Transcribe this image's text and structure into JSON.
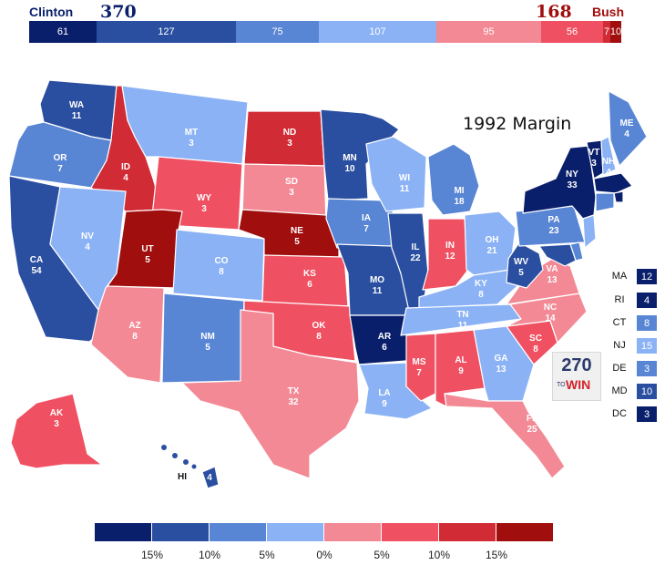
{
  "colors": {
    "d_safe": "#0a1f6b",
    "d_likely": "#2b4fa0",
    "d_lean": "#5885d4",
    "d_tilt": "#8bb2f5",
    "r_tilt": "#f28995",
    "r_lean": "#ef5062",
    "r_likely": "#d12b35",
    "r_safe": "#a00e0e"
  },
  "header": {
    "left_candidate": "Clinton",
    "left_total": "370",
    "right_total": "168",
    "right_candidate": "Bush",
    "segments": [
      {
        "value": "61",
        "cat": "d_safe"
      },
      {
        "value": "127",
        "cat": "d_likely"
      },
      {
        "value": "75",
        "cat": "d_lean"
      },
      {
        "value": "107",
        "cat": "d_tilt"
      },
      {
        "value": "95",
        "cat": "r_tilt"
      },
      {
        "value": "56",
        "cat": "r_lean"
      },
      {
        "value": "7",
        "cat": "r_likely"
      },
      {
        "value": "10",
        "cat": "r_safe"
      }
    ]
  },
  "map_title": "1992 Margin",
  "states": [
    {
      "abbr": "WA",
      "ev": "11",
      "cat": "d_likely"
    },
    {
      "abbr": "OR",
      "ev": "7",
      "cat": "d_lean"
    },
    {
      "abbr": "CA",
      "ev": "54",
      "cat": "d_likely"
    },
    {
      "abbr": "ID",
      "ev": "4",
      "cat": "r_likely"
    },
    {
      "abbr": "NV",
      "ev": "4",
      "cat": "d_tilt"
    },
    {
      "abbr": "MT",
      "ev": "3",
      "cat": "d_tilt"
    },
    {
      "abbr": "WY",
      "ev": "3",
      "cat": "r_lean"
    },
    {
      "abbr": "UT",
      "ev": "5",
      "cat": "r_safe"
    },
    {
      "abbr": "AZ",
      "ev": "8",
      "cat": "r_tilt"
    },
    {
      "abbr": "CO",
      "ev": "8",
      "cat": "d_tilt"
    },
    {
      "abbr": "NM",
      "ev": "5",
      "cat": "d_lean"
    },
    {
      "abbr": "ND",
      "ev": "3",
      "cat": "r_likely"
    },
    {
      "abbr": "SD",
      "ev": "3",
      "cat": "r_tilt"
    },
    {
      "abbr": "NE",
      "ev": "5",
      "cat": "r_safe"
    },
    {
      "abbr": "KS",
      "ev": "6",
      "cat": "r_lean"
    },
    {
      "abbr": "OK",
      "ev": "8",
      "cat": "r_lean"
    },
    {
      "abbr": "TX",
      "ev": "32",
      "cat": "r_tilt"
    },
    {
      "abbr": "MN",
      "ev": "10",
      "cat": "d_likely"
    },
    {
      "abbr": "IA",
      "ev": "7",
      "cat": "d_lean"
    },
    {
      "abbr": "MO",
      "ev": "11",
      "cat": "d_likely"
    },
    {
      "abbr": "AR",
      "ev": "6",
      "cat": "d_safe"
    },
    {
      "abbr": "LA",
      "ev": "9",
      "cat": "d_tilt"
    },
    {
      "abbr": "WI",
      "ev": "11",
      "cat": "d_tilt"
    },
    {
      "abbr": "IL",
      "ev": "22",
      "cat": "d_likely"
    },
    {
      "abbr": "MI",
      "ev": "18",
      "cat": "d_lean"
    },
    {
      "abbr": "IN",
      "ev": "12",
      "cat": "r_lean"
    },
    {
      "abbr": "OH",
      "ev": "21",
      "cat": "d_tilt"
    },
    {
      "abbr": "KY",
      "ev": "8",
      "cat": "d_tilt"
    },
    {
      "abbr": "TN",
      "ev": "11",
      "cat": "d_tilt"
    },
    {
      "abbr": "MS",
      "ev": "7",
      "cat": "r_lean"
    },
    {
      "abbr": "AL",
      "ev": "9",
      "cat": "r_lean"
    },
    {
      "abbr": "GA",
      "ev": "13",
      "cat": "d_tilt"
    },
    {
      "abbr": "FL",
      "ev": "25",
      "cat": "r_tilt"
    },
    {
      "abbr": "SC",
      "ev": "8",
      "cat": "r_lean"
    },
    {
      "abbr": "NC",
      "ev": "14",
      "cat": "r_tilt"
    },
    {
      "abbr": "VA",
      "ev": "13",
      "cat": "r_tilt"
    },
    {
      "abbr": "WV",
      "ev": "5",
      "cat": "d_likely"
    },
    {
      "abbr": "PA",
      "ev": "23",
      "cat": "d_lean"
    },
    {
      "abbr": "NY",
      "ev": "33",
      "cat": "d_safe"
    },
    {
      "abbr": "VT",
      "ev": "3",
      "cat": "d_safe"
    },
    {
      "abbr": "NH",
      "ev": "4",
      "cat": "d_tilt"
    },
    {
      "abbr": "ME",
      "ev": "4",
      "cat": "d_lean"
    },
    {
      "abbr": "AK",
      "ev": "3",
      "cat": "r_lean"
    },
    {
      "abbr": "HI",
      "ev": "4",
      "cat": "d_likely"
    }
  ],
  "small_states": [
    {
      "abbr": "MA",
      "ev": "12",
      "cat": "d_safe"
    },
    {
      "abbr": "RI",
      "ev": "4",
      "cat": "d_safe"
    },
    {
      "abbr": "CT",
      "ev": "8",
      "cat": "d_lean"
    },
    {
      "abbr": "NJ",
      "ev": "15",
      "cat": "d_tilt"
    },
    {
      "abbr": "DE",
      "ev": "3",
      "cat": "d_lean"
    },
    {
      "abbr": "MD",
      "ev": "10",
      "cat": "d_likely"
    },
    {
      "abbr": "DC",
      "ev": "3",
      "cat": "d_safe"
    }
  ],
  "logo": {
    "number": "270",
    "to": "TO",
    "win": "WIN"
  },
  "legend": {
    "swatches": [
      "d_safe",
      "d_likely",
      "d_lean",
      "d_tilt",
      "r_tilt",
      "r_lean",
      "r_likely",
      "r_safe"
    ],
    "ticks": [
      "15%",
      "10%",
      "5%",
      "0%",
      "5%",
      "10%",
      "15%"
    ]
  }
}
